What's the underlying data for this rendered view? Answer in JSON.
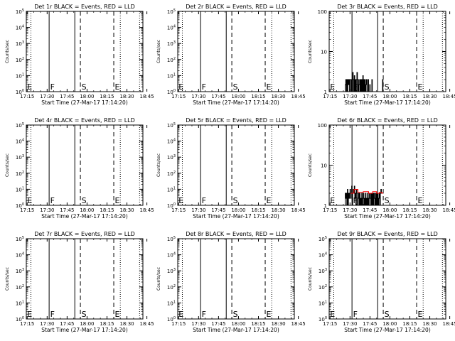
{
  "figure": {
    "background": "#ffffff",
    "event_color": "#000000",
    "lld_color": "#ff0000"
  },
  "chart_data": [
    {
      "type": "line",
      "title": "Det 1r BLACK = Events, RED = LLD",
      "xlabel": "Start Time (27-Mar-17 17:14:20)",
      "ylabel": "Counts/sec",
      "yscale": "log",
      "ylim": [
        1,
        100000
      ],
      "ytick_labels": [
        "10^0",
        "10^1",
        "10^2",
        "10^3",
        "10^4",
        "10^5"
      ],
      "xlim_min": [
        14.33,
        102
      ],
      "xtick_labels": [
        "17:15",
        "17:30",
        "17:45",
        "18:00",
        "18:15",
        "18:30",
        "18:45"
      ],
      "vlines": [
        {
          "t_min": 17.8,
          "style": "dotted"
        },
        {
          "t_min": 31.5,
          "style": "solid"
        },
        {
          "t_min": 50.8,
          "style": "solid"
        },
        {
          "t_min": 55.0,
          "style": "dashed"
        },
        {
          "t_min": 80.1,
          "style": "dashed"
        },
        {
          "t_min": 85.0,
          "style": "dotted"
        },
        {
          "t_min": 99.5,
          "style": "dotted"
        }
      ],
      "markers": [
        {
          "label": "E",
          "t_min": 15.0
        },
        {
          "label": "F",
          "t_min": 32.3
        },
        {
          "label": "S",
          "t_min": 55.8
        },
        {
          "label": "E",
          "t_min": 80.9
        }
      ],
      "series": []
    },
    {
      "type": "line",
      "title": "Det 2r BLACK = Events, RED = LLD",
      "xlabel": "Start Time (27-Mar-17 17:14:20)",
      "ylabel": "Counts/sec",
      "yscale": "log",
      "ylim": [
        1,
        100000
      ],
      "ytick_labels": [
        "10^0",
        "10^1",
        "10^2",
        "10^3",
        "10^4",
        "10^5"
      ],
      "xlim_min": [
        14.33,
        102
      ],
      "xtick_labels": [
        "17:15",
        "17:30",
        "17:45",
        "18:00",
        "18:15",
        "18:30",
        "18:45"
      ],
      "vlines": [
        {
          "t_min": 17.8,
          "style": "dotted"
        },
        {
          "t_min": 31.5,
          "style": "solid"
        },
        {
          "t_min": 50.8,
          "style": "solid"
        },
        {
          "t_min": 55.0,
          "style": "dashed"
        },
        {
          "t_min": 80.1,
          "style": "dashed"
        },
        {
          "t_min": 85.0,
          "style": "dotted"
        },
        {
          "t_min": 99.5,
          "style": "dotted"
        }
      ],
      "markers": [
        {
          "label": "E",
          "t_min": 15.0
        },
        {
          "label": "F",
          "t_min": 32.3
        },
        {
          "label": "S",
          "t_min": 55.8
        },
        {
          "label": "E",
          "t_min": 80.9
        }
      ],
      "series": []
    },
    {
      "type": "line",
      "title": "Det 3r BLACK = Events, RED = LLD",
      "xlabel": "Start Time (27-Mar-17 17:14:20)",
      "ylabel": "Counts/sec",
      "yscale": "log",
      "ylim": [
        1,
        100
      ],
      "ytick_labels": [
        "1",
        "10",
        "100"
      ],
      "xlim_min": [
        14.33,
        102
      ],
      "xtick_labels": [
        "17:15",
        "17:30",
        "17:45",
        "18:00",
        "18:15",
        "18:30",
        "18:45"
      ],
      "vlines": [
        {
          "t_min": 17.8,
          "style": "dotted"
        },
        {
          "t_min": 31.5,
          "style": "solid"
        },
        {
          "t_min": 50.8,
          "style": "solid"
        },
        {
          "t_min": 55.0,
          "style": "dashed"
        },
        {
          "t_min": 80.1,
          "style": "dashed"
        },
        {
          "t_min": 85.0,
          "style": "dotted"
        },
        {
          "t_min": 99.5,
          "style": "dotted"
        }
      ],
      "markers": [
        {
          "label": "E",
          "t_min": 15.0
        },
        {
          "label": "F",
          "t_min": 32.3
        },
        {
          "label": "S",
          "t_min": 55.8
        },
        {
          "label": "E",
          "t_min": 80.9
        }
      ],
      "series": [
        {
          "color": "#000000",
          "t_min": [
            26.0,
            26.4,
            26.8,
            27.2,
            27.6,
            28.0,
            28.4,
            28.8,
            29.2,
            29.6,
            30.0,
            30.4,
            30.8,
            31.2,
            31.6,
            32.0,
            32.4,
            32.8,
            33.2,
            33.6,
            34.0,
            34.4,
            34.8,
            35.2,
            35.6,
            36.0,
            36.4,
            36.8,
            37.2,
            37.6,
            38.0,
            38.4,
            38.8,
            39.2,
            39.6,
            40.0,
            40.4,
            40.8,
            41.2,
            41.6,
            42.0,
            42.4,
            42.8,
            43.2,
            43.6,
            44.0,
            44.4,
            44.8,
            45.2,
            45.6,
            46.0,
            46.4,
            46.8,
            47.2,
            47.6,
            48.0,
            48.4,
            48.8,
            49.2,
            49.6,
            50.0,
            50.4,
            50.8,
            51.2,
            51.6,
            52.0,
            52.4,
            52.8,
            53.2,
            53.6,
            54.0,
            54.4,
            54.8,
            55.2
          ],
          "y": [
            1,
            1.5,
            2,
            1,
            2,
            1,
            2,
            1.5,
            2,
            1,
            2,
            2,
            1,
            2,
            1,
            3,
            2,
            1,
            2.5,
            1,
            2,
            1,
            2,
            3,
            1,
            2,
            1,
            1.5,
            2,
            1,
            2,
            1,
            2,
            1,
            2.5,
            1,
            2,
            1,
            2,
            1,
            1.5,
            2,
            1,
            1,
            2,
            1,
            1,
            1.5,
            1,
            1,
            1,
            2,
            1,
            1,
            1,
            1,
            1,
            1,
            1,
            1,
            1,
            1,
            1,
            1,
            1,
            1,
            1,
            1,
            1,
            1,
            1,
            2,
            1,
            1
          ]
        }
      ]
    },
    {
      "type": "line",
      "title": "Det 4r BLACK = Events, RED = LLD",
      "xlabel": "Start Time (27-Mar-17 17:14:20)",
      "ylabel": "Counts/sec",
      "yscale": "log",
      "ylim": [
        1,
        100000
      ],
      "ytick_labels": [
        "10^0",
        "10^1",
        "10^2",
        "10^3",
        "10^4",
        "10^5"
      ],
      "xlim_min": [
        14.33,
        102
      ],
      "xtick_labels": [
        "17:15",
        "17:30",
        "17:45",
        "18:00",
        "18:15",
        "18:30",
        "18:45"
      ],
      "vlines": [
        {
          "t_min": 17.8,
          "style": "dotted"
        },
        {
          "t_min": 31.5,
          "style": "solid"
        },
        {
          "t_min": 50.8,
          "style": "solid"
        },
        {
          "t_min": 55.0,
          "style": "dashed"
        },
        {
          "t_min": 80.1,
          "style": "dashed"
        },
        {
          "t_min": 85.0,
          "style": "dotted"
        },
        {
          "t_min": 99.5,
          "style": "dotted"
        }
      ],
      "markers": [
        {
          "label": "E",
          "t_min": 15.0
        },
        {
          "label": "F",
          "t_min": 32.3
        },
        {
          "label": "S",
          "t_min": 55.8
        },
        {
          "label": "E",
          "t_min": 80.9
        }
      ],
      "series": []
    },
    {
      "type": "line",
      "title": "Det 5r BLACK = Events, RED = LLD",
      "xlabel": "Start Time (27-Mar-17 17:14:20)",
      "ylabel": "Counts/sec",
      "yscale": "log",
      "ylim": [
        1,
        100000
      ],
      "ytick_labels": [
        "10^0",
        "10^1",
        "10^2",
        "10^3",
        "10^4",
        "10^5"
      ],
      "xlim_min": [
        14.33,
        102
      ],
      "xtick_labels": [
        "17:15",
        "17:30",
        "17:45",
        "18:00",
        "18:15",
        "18:30",
        "18:45"
      ],
      "vlines": [
        {
          "t_min": 17.8,
          "style": "dotted"
        },
        {
          "t_min": 31.5,
          "style": "solid"
        },
        {
          "t_min": 50.8,
          "style": "solid"
        },
        {
          "t_min": 55.0,
          "style": "dashed"
        },
        {
          "t_min": 80.1,
          "style": "dashed"
        },
        {
          "t_min": 85.0,
          "style": "dotted"
        },
        {
          "t_min": 99.5,
          "style": "dotted"
        }
      ],
      "markers": [
        {
          "label": "E",
          "t_min": 15.0
        },
        {
          "label": "F",
          "t_min": 32.3
        },
        {
          "label": "S",
          "t_min": 55.8
        },
        {
          "label": "E",
          "t_min": 80.9
        }
      ],
      "series": []
    },
    {
      "type": "line",
      "title": "Det 6r BLACK = Events, RED = LLD",
      "xlabel": "Start Time (27-Mar-17 17:14:20)",
      "ylabel": "Counts/sec",
      "yscale": "log",
      "ylim": [
        1,
        100
      ],
      "ytick_labels": [
        "1",
        "10",
        "100"
      ],
      "xlim_min": [
        14.33,
        102
      ],
      "xtick_labels": [
        "17:15",
        "17:30",
        "17:45",
        "18:00",
        "18:15",
        "18:30",
        "18:45"
      ],
      "vlines": [
        {
          "t_min": 17.8,
          "style": "dotted"
        },
        {
          "t_min": 31.5,
          "style": "solid"
        },
        {
          "t_min": 50.8,
          "style": "solid"
        },
        {
          "t_min": 55.0,
          "style": "dashed"
        },
        {
          "t_min": 80.1,
          "style": "dashed"
        },
        {
          "t_min": 85.0,
          "style": "dotted"
        },
        {
          "t_min": 99.5,
          "style": "dotted"
        }
      ],
      "markers": [
        {
          "label": "E",
          "t_min": 15.0
        },
        {
          "label": "F",
          "t_min": 32.3
        },
        {
          "label": "S",
          "t_min": 55.8
        },
        {
          "label": "E",
          "t_min": 80.9
        }
      ],
      "series": [
        {
          "color": "#000000",
          "t_min": [
            26.0,
            26.4,
            26.8,
            27.2,
            27.6,
            28.0,
            28.4,
            28.8,
            29.2,
            29.6,
            30.0,
            30.4,
            30.8,
            31.2,
            31.6,
            32.0,
            32.4,
            32.8,
            33.2,
            33.6,
            34.0,
            34.4,
            34.8,
            35.2,
            35.6,
            36.0,
            36.4,
            36.8,
            37.2,
            37.6,
            38.0,
            38.4,
            38.8,
            39.2,
            39.6,
            40.0,
            40.4,
            40.8,
            41.2,
            41.6,
            42.0,
            42.4,
            42.8,
            43.2,
            43.6,
            44.0,
            44.4,
            44.8,
            45.2,
            45.6,
            46.0,
            46.4,
            46.8,
            47.2,
            47.6,
            48.0,
            48.4,
            48.8,
            49.2,
            49.6,
            50.0,
            50.4,
            50.8,
            51.2,
            51.6,
            52.0,
            52.4,
            52.8,
            53.2,
            53.6,
            54.0,
            54.4,
            54.8,
            55.2
          ],
          "y": [
            1,
            2,
            1.5,
            2,
            1,
            2.5,
            1,
            2,
            1.5,
            2,
            2.5,
            1.5,
            2,
            3,
            1,
            2,
            2.5,
            2,
            3,
            1.5,
            2,
            1,
            2.5,
            2,
            1,
            1.5,
            2,
            1,
            2,
            1,
            1.5,
            1,
            2,
            1,
            1.5,
            2,
            1,
            1.5,
            1,
            2,
            1,
            1.5,
            1,
            2,
            1,
            1.5,
            2,
            1,
            1.5,
            2,
            1,
            2,
            1,
            2,
            1,
            2,
            1.5,
            1,
            2,
            1,
            2,
            1,
            2,
            1,
            1.5,
            2,
            1,
            2,
            2.5,
            2,
            2,
            2,
            2,
            2
          ]
        },
        {
          "color": "#ff0000",
          "t_min": [
            30.5,
            33.0,
            36.0,
            40.0,
            44.0,
            47.0,
            50.0,
            52.0,
            54.0,
            55.0
          ],
          "y": [
            2,
            2.5,
            2.1,
            2.2,
            2.0,
            2.2,
            2.0,
            2.1,
            2.0,
            2.0
          ]
        }
      ]
    },
    {
      "type": "line",
      "title": "Det 7r BLACK = Events, RED = LLD",
      "xlabel": "Start Time (27-Mar-17 17:14:20)",
      "ylabel": "Counts/sec",
      "yscale": "log",
      "ylim": [
        1,
        100000
      ],
      "ytick_labels": [
        "10^0",
        "10^1",
        "10^2",
        "10^3",
        "10^4",
        "10^5"
      ],
      "xlim_min": [
        14.33,
        102
      ],
      "xtick_labels": [
        "17:15",
        "17:30",
        "17:45",
        "18:00",
        "18:15",
        "18:30",
        "18:45"
      ],
      "vlines": [
        {
          "t_min": 17.8,
          "style": "dotted"
        },
        {
          "t_min": 31.5,
          "style": "solid"
        },
        {
          "t_min": 50.8,
          "style": "solid"
        },
        {
          "t_min": 55.0,
          "style": "dashed"
        },
        {
          "t_min": 80.1,
          "style": "dashed"
        },
        {
          "t_min": 85.0,
          "style": "dotted"
        },
        {
          "t_min": 99.5,
          "style": "dotted"
        }
      ],
      "markers": [
        {
          "label": "E",
          "t_min": 15.0
        },
        {
          "label": "F",
          "t_min": 32.3
        },
        {
          "label": "S",
          "t_min": 55.8
        },
        {
          "label": "E",
          "t_min": 80.9
        }
      ],
      "series": []
    },
    {
      "type": "line",
      "title": "Det 8r BLACK = Events, RED = LLD",
      "xlabel": "Start Time (27-Mar-17 17:14:20)",
      "ylabel": "Counts/sec",
      "yscale": "log",
      "ylim": [
        1,
        100000
      ],
      "ytick_labels": [
        "10^0",
        "10^1",
        "10^2",
        "10^3",
        "10^4",
        "10^5"
      ],
      "xlim_min": [
        14.33,
        102
      ],
      "xtick_labels": [
        "17:15",
        "17:30",
        "17:45",
        "18:00",
        "18:15",
        "18:30",
        "18:45"
      ],
      "vlines": [
        {
          "t_min": 17.8,
          "style": "dotted"
        },
        {
          "t_min": 31.5,
          "style": "solid"
        },
        {
          "t_min": 50.8,
          "style": "solid"
        },
        {
          "t_min": 55.0,
          "style": "dashed"
        },
        {
          "t_min": 80.1,
          "style": "dashed"
        },
        {
          "t_min": 85.0,
          "style": "dotted"
        },
        {
          "t_min": 99.5,
          "style": "dotted"
        }
      ],
      "markers": [
        {
          "label": "E",
          "t_min": 15.0
        },
        {
          "label": "F",
          "t_min": 32.3
        },
        {
          "label": "S",
          "t_min": 55.8
        },
        {
          "label": "E",
          "t_min": 80.9
        }
      ],
      "series": []
    },
    {
      "type": "line",
      "title": "Det 9r BLACK = Events, RED = LLD",
      "xlabel": "Start Time (27-Mar-17 17:14:20)",
      "ylabel": "Counts/sec",
      "yscale": "log",
      "ylim": [
        1,
        100000
      ],
      "ytick_labels": [
        "10^0",
        "10^1",
        "10^2",
        "10^3",
        "10^4",
        "10^5"
      ],
      "xlim_min": [
        14.33,
        102
      ],
      "xtick_labels": [
        "17:15",
        "17:30",
        "17:45",
        "18:00",
        "18:15",
        "18:30",
        "18:45"
      ],
      "vlines": [
        {
          "t_min": 17.8,
          "style": "dotted"
        },
        {
          "t_min": 31.5,
          "style": "solid"
        },
        {
          "t_min": 50.8,
          "style": "solid"
        },
        {
          "t_min": 55.0,
          "style": "dashed"
        },
        {
          "t_min": 80.1,
          "style": "dashed"
        },
        {
          "t_min": 85.0,
          "style": "dotted"
        },
        {
          "t_min": 99.5,
          "style": "dotted"
        }
      ],
      "markers": [
        {
          "label": "E",
          "t_min": 15.0
        },
        {
          "label": "F",
          "t_min": 32.3
        },
        {
          "label": "S",
          "t_min": 55.8
        },
        {
          "label": "E",
          "t_min": 80.9
        }
      ],
      "series": []
    }
  ]
}
